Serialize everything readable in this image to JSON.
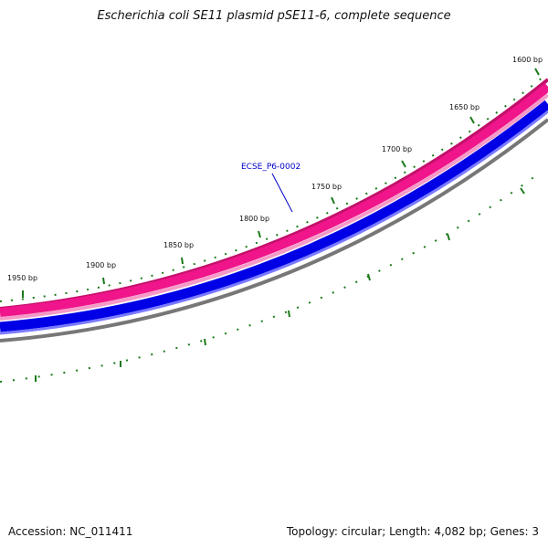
{
  "title": "Escherichia coli SE11 plasmid pSE11-6, complete sequence",
  "accession": "Accession: NC_011411",
  "summary": "Topology: circular; Length: 4,082 bp; Genes: 3",
  "plasmid_length": 4082,
  "tick_labels": [
    {
      "label": "1600 bp"
    },
    {
      "label": "1650 bp"
    },
    {
      "label": "1700 bp"
    },
    {
      "label": "1750 bp"
    },
    {
      "label": "1800 bp"
    },
    {
      "label": "1850 bp"
    },
    {
      "label": "1900 bp"
    },
    {
      "label": "1950 bp"
    }
  ],
  "features": [
    {
      "label": "ECSE_P6-0002",
      "color": "#0000cc"
    }
  ],
  "colors": {
    "tick": "#1a7a1a",
    "feature_track": "#e8107a",
    "feature_track_light": "#f59ac8",
    "strand_track": "#0000e6",
    "strand_track_light": "#7a7aff",
    "backbone": "#888888",
    "backbone_dark": "#555555"
  }
}
